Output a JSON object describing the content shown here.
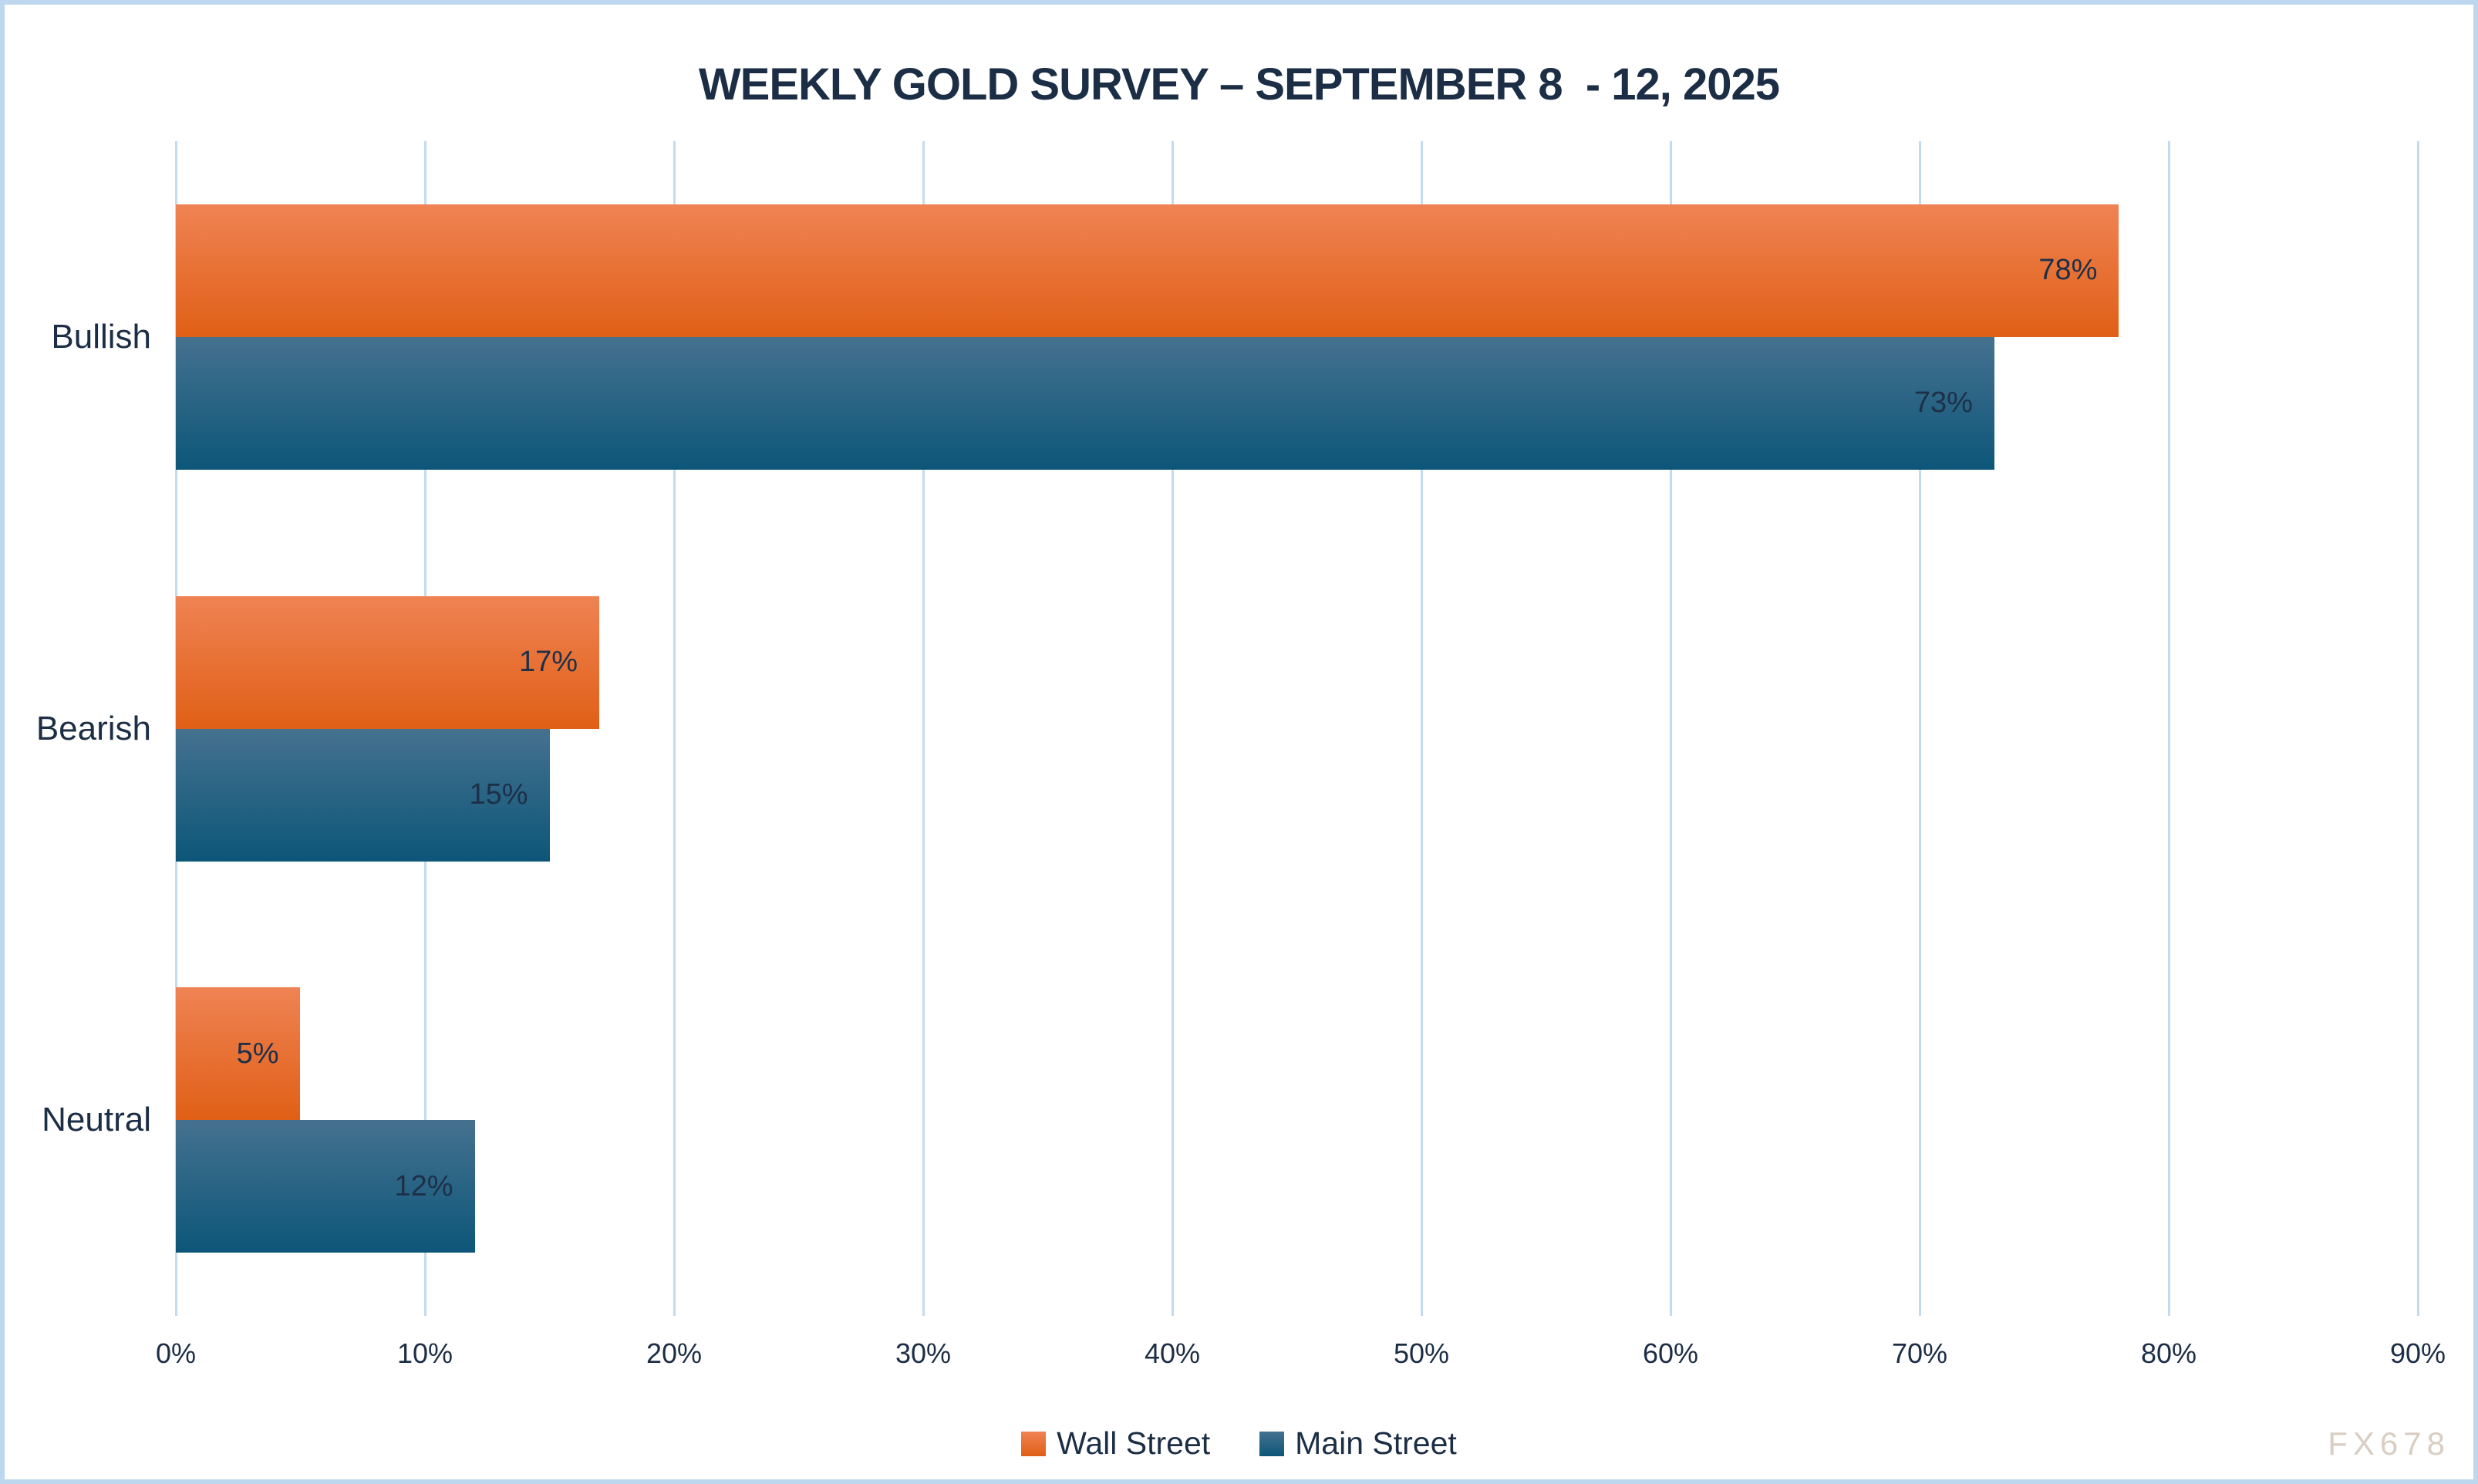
{
  "title": "WEEKLY GOLD SURVEY – SEPTEMBER 8  - 12, 2025",
  "watermark": "FX678",
  "colors": {
    "frame_border": "#BDD7EE",
    "gridline": "#C3DBEE",
    "text_navy": "#1C2E45",
    "data_label": "#1D3048",
    "wall_street_top": "#EF8354",
    "wall_street_bottom": "#E05F16",
    "main_street_top": "#45718F",
    "main_street_bottom": "#0D5679",
    "watermark_color": "#D9CEC2"
  },
  "chart_data": {
    "type": "bar",
    "orientation": "horizontal",
    "title": "WEEKLY GOLD SURVEY – SEPTEMBER 8  - 12, 2025",
    "categories": [
      "Bullish",
      "Bearish",
      "Neutral"
    ],
    "series": [
      {
        "name": "Wall Street",
        "values": [
          78,
          17,
          5
        ],
        "color_top": "#EF8354",
        "color_bottom": "#E05F16"
      },
      {
        "name": "Main Street",
        "values": [
          73,
          15,
          12
        ],
        "color_top": "#45718F",
        "color_bottom": "#0D5679"
      }
    ],
    "value_suffix": "%",
    "data_labels": "inside-end",
    "x_ticks": [
      "0%",
      "10%",
      "20%",
      "30%",
      "40%",
      "50%",
      "60%",
      "70%",
      "80%",
      "90%"
    ],
    "xlim": [
      0,
      90
    ],
    "xlabel": "",
    "ylabel": "",
    "grid": true,
    "legend_position": "bottom"
  }
}
